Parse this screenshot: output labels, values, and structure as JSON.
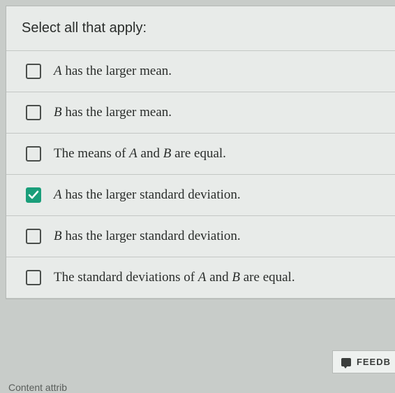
{
  "prompt": "Select all that apply:",
  "options": [
    {
      "checked": false,
      "prefix": "A",
      "text": " has the larger mean."
    },
    {
      "checked": false,
      "prefix": "B",
      "text": " has the larger mean."
    },
    {
      "checked": false,
      "prefix": "",
      "html": "The means of <span class='math'>A</span> and <span class='math'>B</span> are equal."
    },
    {
      "checked": true,
      "prefix": "A",
      "text": " has the larger standard deviation."
    },
    {
      "checked": false,
      "prefix": "B",
      "text": " has the larger standard deviation."
    },
    {
      "checked": false,
      "prefix": "",
      "html": "The standard deviations of <span class='math'>A</span> and <span class='math'>B</span> are equal."
    }
  ],
  "feedback_label": "FEEDB",
  "footer_text": "Content attrib",
  "colors": {
    "checked_bg": "#1a9e7a",
    "panel_bg": "#e8ebe9",
    "border": "#c3c7c4"
  }
}
